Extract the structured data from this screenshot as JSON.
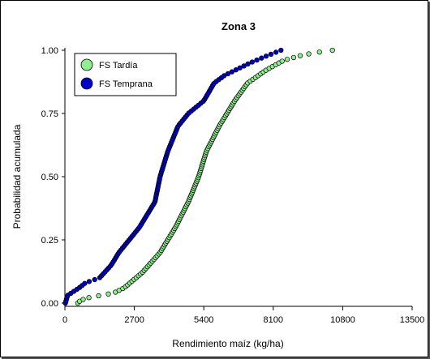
{
  "chart_data": {
    "type": "scatter",
    "title": "Zona 3",
    "xlabel": "Rendimiento maíz (kg/ha)",
    "ylabel": "Probabilidad acumulada",
    "xlim": [
      0,
      13500
    ],
    "ylim": [
      0,
      1
    ],
    "x_ticks": [
      "0",
      "2700",
      "5400",
      "8100",
      "10800",
      "13500"
    ],
    "y_ticks": [
      "0.00",
      "0.25",
      "0.50",
      "0.75",
      "1.00"
    ],
    "grid": false,
    "legend_position": "top-left",
    "series": [
      {
        "name": "FS Tardía",
        "color": "#90ee90",
        "cdf_knots": [
          [
            0.0,
            500
          ],
          [
            0.01,
            600
          ],
          [
            0.02,
            850
          ],
          [
            0.04,
            1900
          ],
          [
            0.06,
            2300
          ],
          [
            0.12,
            3000
          ],
          [
            0.2,
            3700
          ],
          [
            0.3,
            4300
          ],
          [
            0.4,
            4800
          ],
          [
            0.5,
            5200
          ],
          [
            0.6,
            5500
          ],
          [
            0.7,
            6000
          ],
          [
            0.8,
            6600
          ],
          [
            0.87,
            7100
          ],
          [
            0.92,
            7800
          ],
          [
            0.96,
            8500
          ],
          [
            0.98,
            9200
          ],
          [
            0.99,
            9700
          ],
          [
            1.0,
            10400
          ]
        ],
        "n_points": 140
      },
      {
        "name": "FS Temprana",
        "color": "#0000cc",
        "cdf_knots": [
          [
            0.0,
            20
          ],
          [
            0.03,
            100
          ],
          [
            0.06,
            550
          ],
          [
            0.08,
            800
          ],
          [
            0.1,
            1350
          ],
          [
            0.15,
            1800
          ],
          [
            0.2,
            2100
          ],
          [
            0.25,
            2500
          ],
          [
            0.3,
            2900
          ],
          [
            0.35,
            3200
          ],
          [
            0.4,
            3500
          ],
          [
            0.5,
            3700
          ],
          [
            0.6,
            4000
          ],
          [
            0.7,
            4400
          ],
          [
            0.75,
            4800
          ],
          [
            0.8,
            5400
          ],
          [
            0.87,
            5800
          ],
          [
            0.9,
            6200
          ],
          [
            0.95,
            7200
          ],
          [
            0.98,
            7900
          ],
          [
            1.0,
            8400
          ]
        ],
        "n_points": 130
      }
    ]
  }
}
